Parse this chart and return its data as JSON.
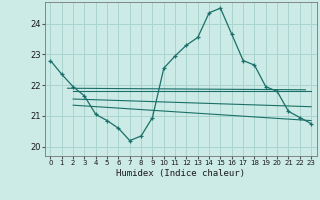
{
  "xlabel": "Humidex (Indice chaleur)",
  "xlim": [
    -0.5,
    23.5
  ],
  "ylim": [
    19.7,
    24.7
  ],
  "yticks": [
    20,
    21,
    22,
    23,
    24
  ],
  "xticks": [
    0,
    1,
    2,
    3,
    4,
    5,
    6,
    7,
    8,
    9,
    10,
    11,
    12,
    13,
    14,
    15,
    16,
    17,
    18,
    19,
    20,
    21,
    22,
    23
  ],
  "bg_color": "#cceae6",
  "grid_color": "#aad4cf",
  "line_color": "#1a7068",
  "main_values": [
    22.8,
    22.35,
    21.95,
    21.65,
    21.05,
    20.85,
    20.6,
    20.2,
    20.35,
    20.95,
    22.55,
    22.95,
    23.3,
    23.55,
    24.35,
    24.5,
    23.65,
    22.8,
    22.65,
    21.95,
    21.8,
    21.15,
    20.95,
    20.75
  ],
  "ref_lines": [
    {
      "x": [
        1.5,
        22.5
      ],
      "y": [
        21.9,
        21.85
      ]
    },
    {
      "x": [
        2.0,
        23.0
      ],
      "y": [
        21.8,
        21.8
      ]
    },
    {
      "x": [
        2.0,
        23.0
      ],
      "y": [
        21.55,
        21.3
      ]
    },
    {
      "x": [
        2.0,
        23.0
      ],
      "y": [
        21.35,
        20.85
      ]
    }
  ]
}
